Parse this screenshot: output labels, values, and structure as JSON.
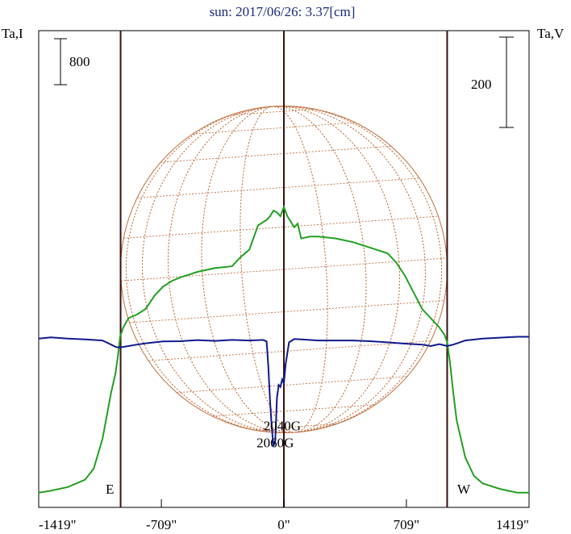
{
  "chart_data": {
    "type": "line",
    "title": "sun: 2017/06/26: 3.37[cm]",
    "left_axis_label": "Ta,I",
    "right_axis_label": "Ta,V",
    "left_scale_bar": "800",
    "right_scale_bar": "200",
    "limb_left_label": "E",
    "limb_right_label": "W",
    "xlim": [
      -1419,
      1419
    ],
    "x_ticks": [
      {
        "value": -1419,
        "label": "-1419\""
      },
      {
        "value": -709,
        "label": "-709\""
      },
      {
        "value": 0,
        "label": "0\""
      },
      {
        "value": 709,
        "label": "709\""
      },
      {
        "value": 1419,
        "label": "1419\""
      }
    ],
    "limbs": [
      -945,
      945
    ],
    "annotations": [
      {
        "text": "2040G",
        "x": -10,
        "y": 0.345
      },
      {
        "text": "2060G",
        "x": -50,
        "y": 0.255
      }
    ],
    "colors": {
      "stokes_i": "#22a022",
      "stokes_v": "#101a8c",
      "limb_lines": "#3a1010",
      "disk": "#c07040",
      "title": "#1a2a7a"
    },
    "series": [
      {
        "key": "stokes_i",
        "x": [
          -1419,
          -1350,
          -1250,
          -1150,
          -1100,
          -1050,
          -1000,
          -975,
          -960,
          -948,
          -930,
          -900,
          -850,
          -800,
          -750,
          -700,
          -650,
          -600,
          -500,
          -400,
          -300,
          -250,
          -200,
          -150,
          -100,
          -80,
          -60,
          -40,
          -20,
          0,
          20,
          40,
          60,
          80,
          100,
          150,
          200,
          300,
          400,
          500,
          600,
          650,
          700,
          750,
          800,
          850,
          900,
          930,
          945,
          960,
          980,
          1000,
          1050,
          1100,
          1150,
          1250,
          1350,
          1419
        ],
        "y": [
          0.01,
          0.02,
          0.04,
          0.08,
          0.14,
          0.3,
          0.55,
          0.65,
          0.75,
          0.85,
          0.9,
          0.95,
          0.97,
          1.0,
          1.07,
          1.12,
          1.15,
          1.17,
          1.2,
          1.22,
          1.23,
          1.28,
          1.32,
          1.45,
          1.48,
          1.5,
          1.53,
          1.52,
          1.5,
          1.55,
          1.5,
          1.47,
          1.44,
          1.46,
          1.38,
          1.39,
          1.39,
          1.38,
          1.36,
          1.33,
          1.3,
          1.25,
          1.18,
          1.09,
          1.0,
          0.95,
          0.9,
          0.86,
          0.82,
          0.72,
          0.55,
          0.4,
          0.2,
          0.1,
          0.06,
          0.03,
          0.01,
          0.01
        ]
      },
      {
        "key": "stokes_v",
        "x": [
          -1419,
          -1350,
          -1250,
          -1150,
          -1050,
          -1000,
          -970,
          -945,
          -900,
          -850,
          -800,
          -700,
          -600,
          -500,
          -400,
          -300,
          -200,
          -120,
          -100,
          -90,
          -80,
          -70,
          -60,
          -50,
          -40,
          -30,
          -20,
          -10,
          0,
          10,
          30,
          60,
          100,
          200,
          300,
          400,
          500,
          600,
          700,
          800,
          850,
          900,
          945,
          980,
          1000,
          1050,
          1150,
          1250,
          1350,
          1419
        ],
        "y": [
          0.84,
          0.847,
          0.84,
          0.836,
          0.83,
          0.808,
          0.794,
          0.793,
          0.8,
          0.808,
          0.815,
          0.825,
          0.826,
          0.832,
          0.828,
          0.833,
          0.83,
          0.833,
          0.825,
          0.69,
          0.5,
          0.36,
          0.26,
          0.29,
          0.52,
          0.59,
          0.58,
          0.62,
          0.6,
          0.7,
          0.82,
          0.838,
          0.836,
          0.83,
          0.83,
          0.83,
          0.826,
          0.82,
          0.813,
          0.808,
          0.8,
          0.81,
          0.8,
          0.808,
          0.814,
          0.83,
          0.84,
          0.845,
          0.85,
          0.85
        ]
      }
    ]
  }
}
